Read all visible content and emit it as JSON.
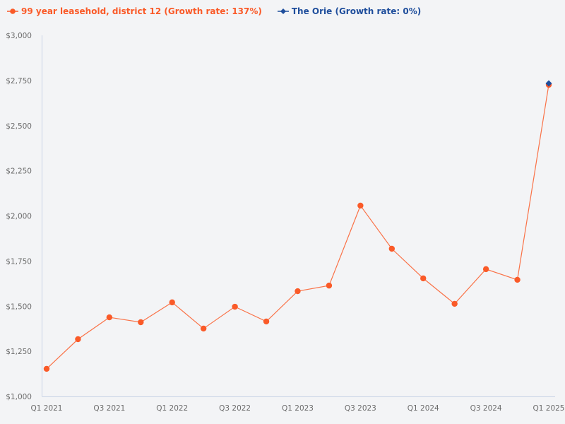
{
  "legend": [
    {
      "label": "99 year leasehold, district 12 (Growth rate: 137%)",
      "color": "#fa5a28",
      "marker": "circle"
    },
    {
      "label": "The Orie (Growth rate: 0%)",
      "color": "#1f4e9c",
      "marker": "diamond"
    }
  ],
  "colors": {
    "background": "#f3f4f6",
    "axis": "#c8d3e6",
    "tick_text": "#6b6b6b"
  },
  "chart_data": {
    "type": "line",
    "title": "",
    "xlabel": "",
    "ylabel": "",
    "ylim": [
      1000,
      3000
    ],
    "grid": false,
    "legend_position": "top-left",
    "y_ticks": [
      "$1,000",
      "$1,250",
      "$1,500",
      "$1,750",
      "$2,000",
      "$2,250",
      "$2,500",
      "$2,750",
      "$3,000"
    ],
    "y_tick_values": [
      1000,
      1250,
      1500,
      1750,
      2000,
      2250,
      2500,
      2750,
      3000
    ],
    "x_tick_labels": [
      "Q1 2021",
      "Q3 2021",
      "Q1 2022",
      "Q3 2022",
      "Q1 2023",
      "Q3 2023",
      "Q1 2024",
      "Q3 2024",
      "Q1 2025"
    ],
    "categories": [
      "Q1 2021",
      "Q2 2021",
      "Q3 2021",
      "Q4 2021",
      "Q1 2022",
      "Q2 2022",
      "Q3 2022",
      "Q4 2022",
      "Q1 2023",
      "Q2 2023",
      "Q3 2023",
      "Q4 2023",
      "Q1 2024",
      "Q2 2024",
      "Q3 2024",
      "Q4 2024",
      "Q1 2025"
    ],
    "series": [
      {
        "name": "99 year leasehold, district 12 (Growth rate: 137%)",
        "color": "#fa5a28",
        "values": [
          1153,
          1317,
          1438,
          1411,
          1521,
          1376,
          1497,
          1415,
          1583,
          1614,
          2057,
          1818,
          1654,
          1513,
          1705,
          1646,
          2726
        ]
      },
      {
        "name": "The Orie (Growth rate: 0%)",
        "color": "#1f4e9c",
        "values": [
          null,
          null,
          null,
          null,
          null,
          null,
          null,
          null,
          null,
          null,
          null,
          null,
          null,
          null,
          null,
          null,
          2734
        ]
      }
    ]
  }
}
